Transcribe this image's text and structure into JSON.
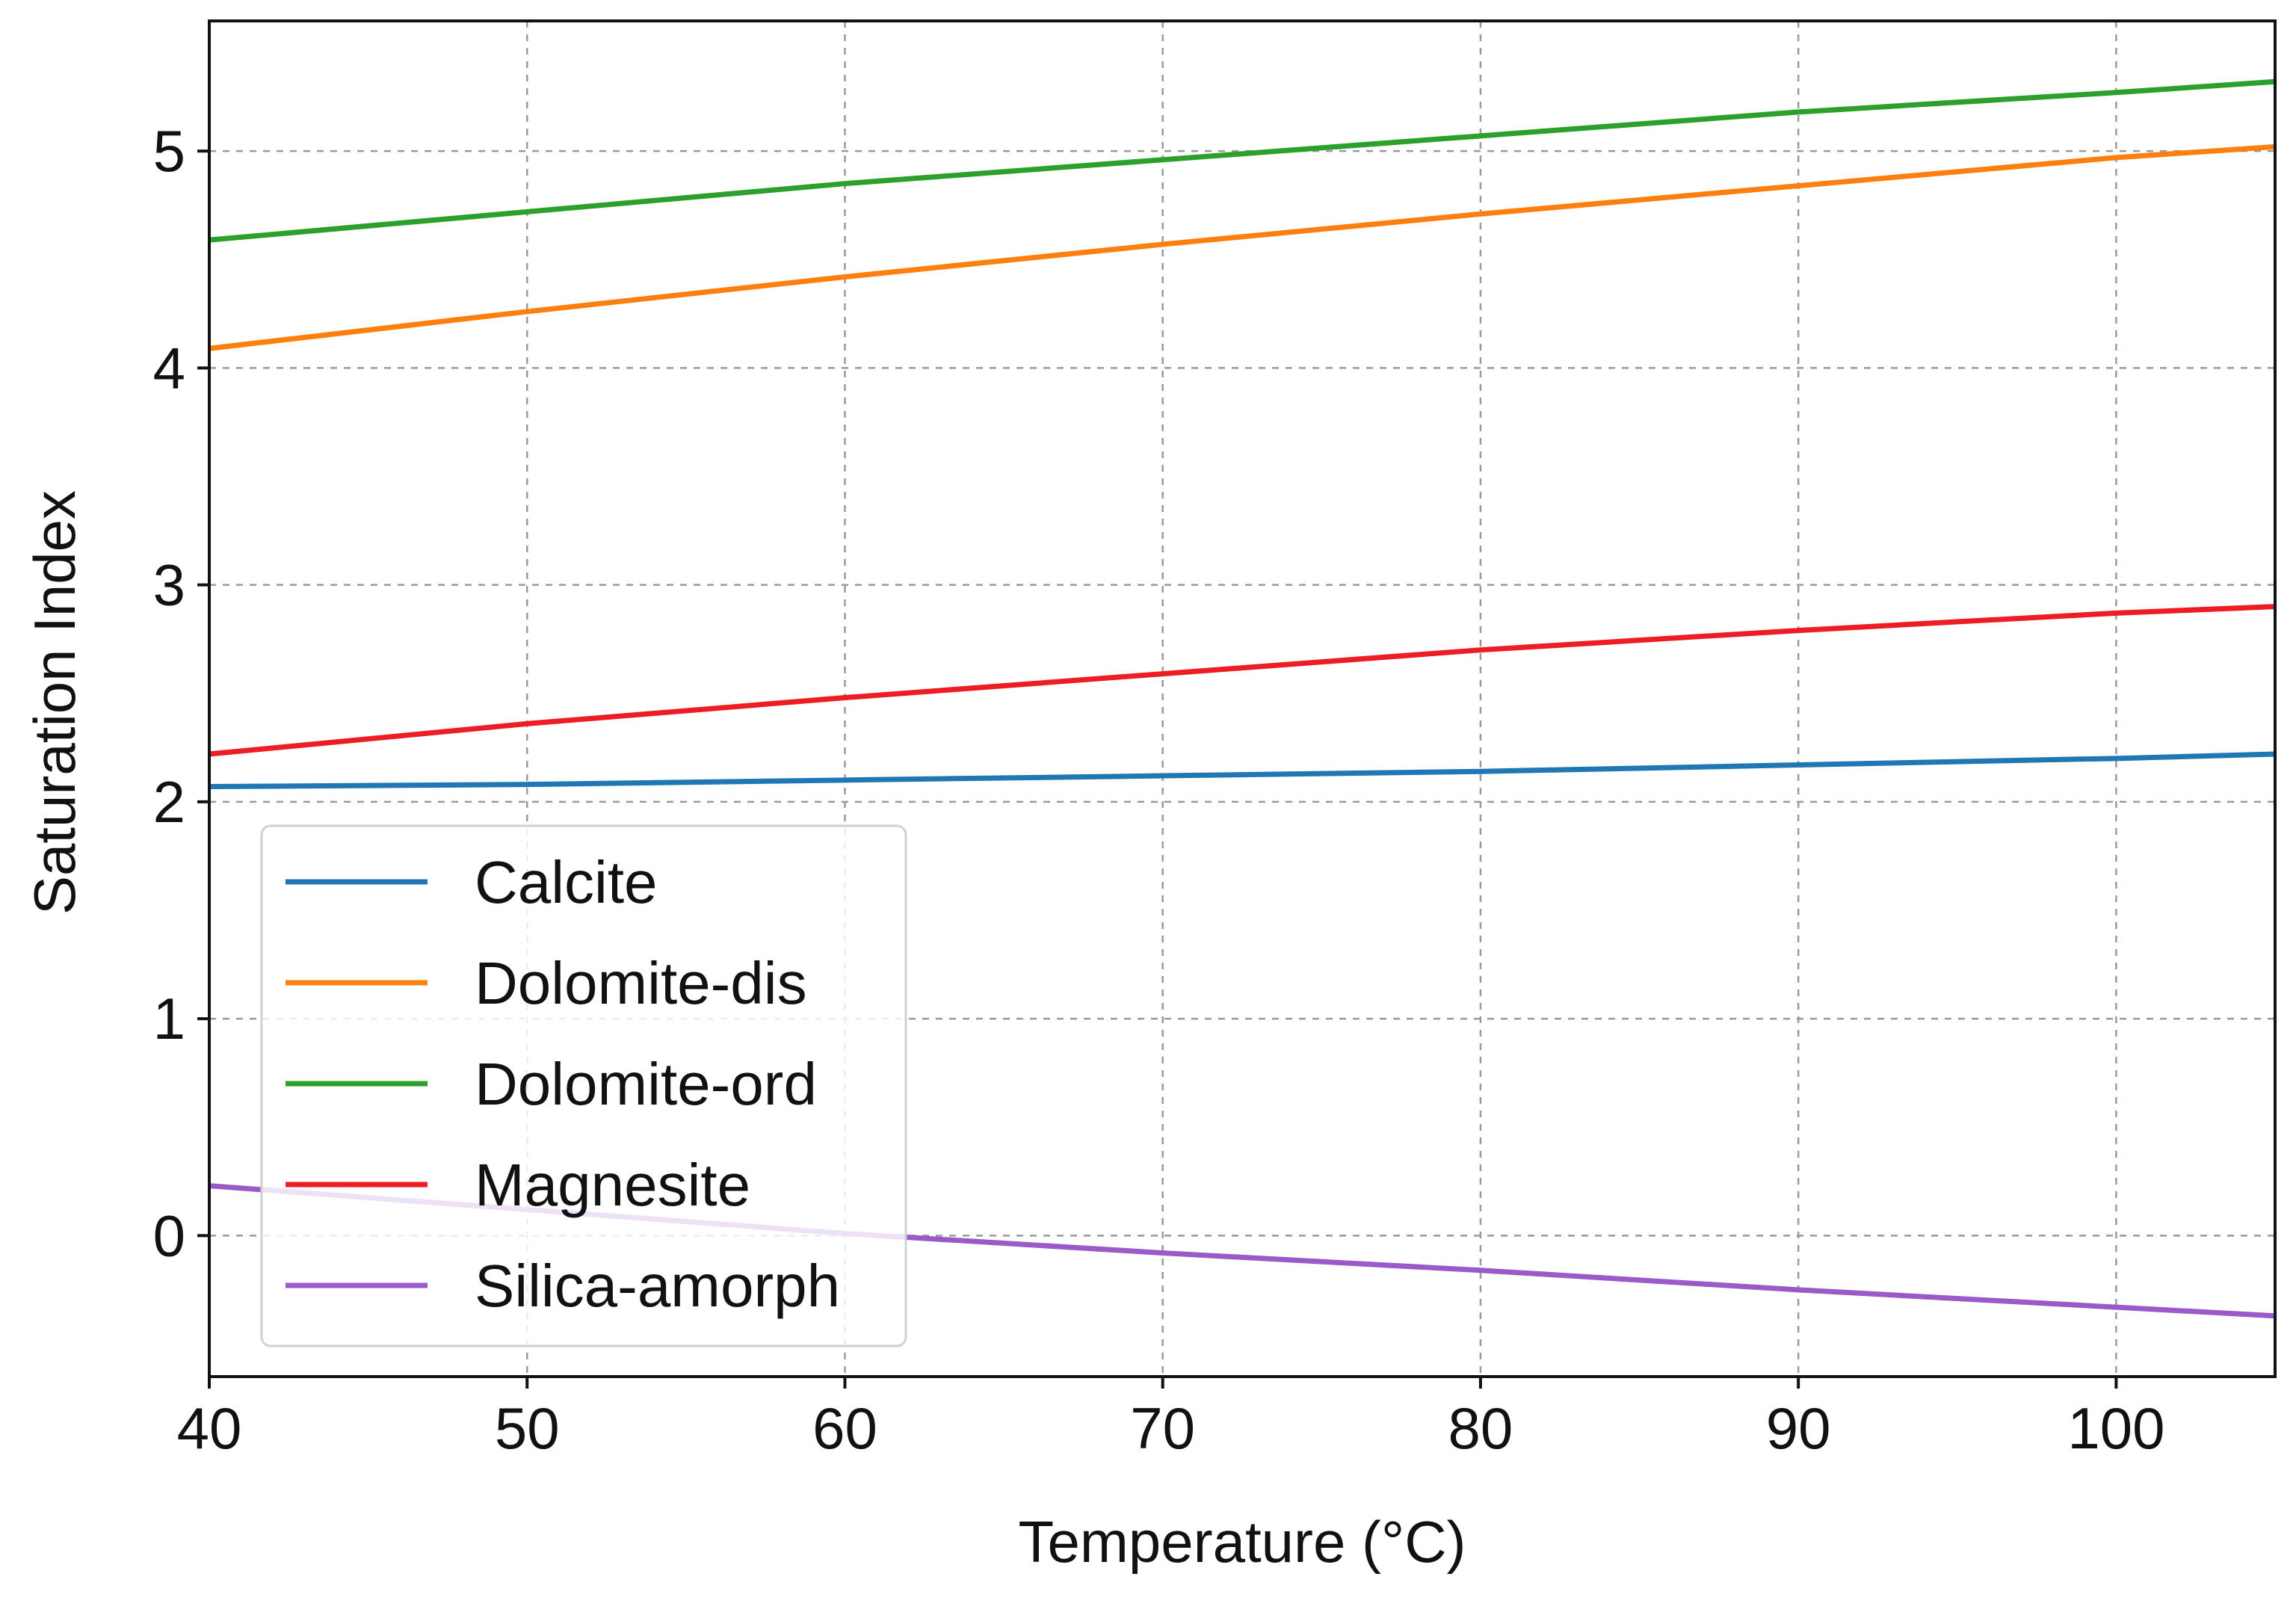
{
  "chart_data": {
    "type": "line",
    "title": "",
    "xlabel": "Temperature (°C)",
    "ylabel": "Saturation Index",
    "xlim": [
      40,
      105
    ],
    "ylim": [
      -0.65,
      5.6
    ],
    "xticks": [
      40,
      50,
      60,
      70,
      80,
      90,
      100
    ],
    "xtick_labels": [
      "40",
      "50",
      "60",
      "70",
      "80",
      "90",
      "100"
    ],
    "yticks": [
      0,
      1,
      2,
      3,
      4,
      5
    ],
    "ytick_labels": [
      "0",
      "1",
      "2",
      "3",
      "4",
      "5"
    ],
    "grid": true,
    "legend_position": "lower-left",
    "x": [
      40,
      50,
      60,
      70,
      80,
      90,
      100,
      105
    ],
    "series": [
      {
        "name": "Calcite",
        "color": "#1f77b4",
        "values": [
          2.07,
          2.08,
          2.1,
          2.12,
          2.14,
          2.17,
          2.2,
          2.22
        ]
      },
      {
        "name": "Dolomite-dis",
        "color": "#ff7f0e",
        "values": [
          4.09,
          4.26,
          4.42,
          4.57,
          4.71,
          4.84,
          4.97,
          5.02
        ]
      },
      {
        "name": "Dolomite-ord",
        "color": "#2ca02c",
        "values": [
          4.59,
          4.72,
          4.85,
          4.96,
          5.07,
          5.18,
          5.27,
          5.32
        ]
      },
      {
        "name": "Magnesite",
        "color": "#ee1c25",
        "values": [
          2.22,
          2.36,
          2.48,
          2.59,
          2.7,
          2.79,
          2.87,
          2.9
        ]
      },
      {
        "name": "Silica-amorph",
        "color": "#9b59c9",
        "values": [
          0.23,
          0.12,
          0.01,
          -0.08,
          -0.16,
          -0.25,
          -0.33,
          -0.37
        ]
      }
    ]
  }
}
